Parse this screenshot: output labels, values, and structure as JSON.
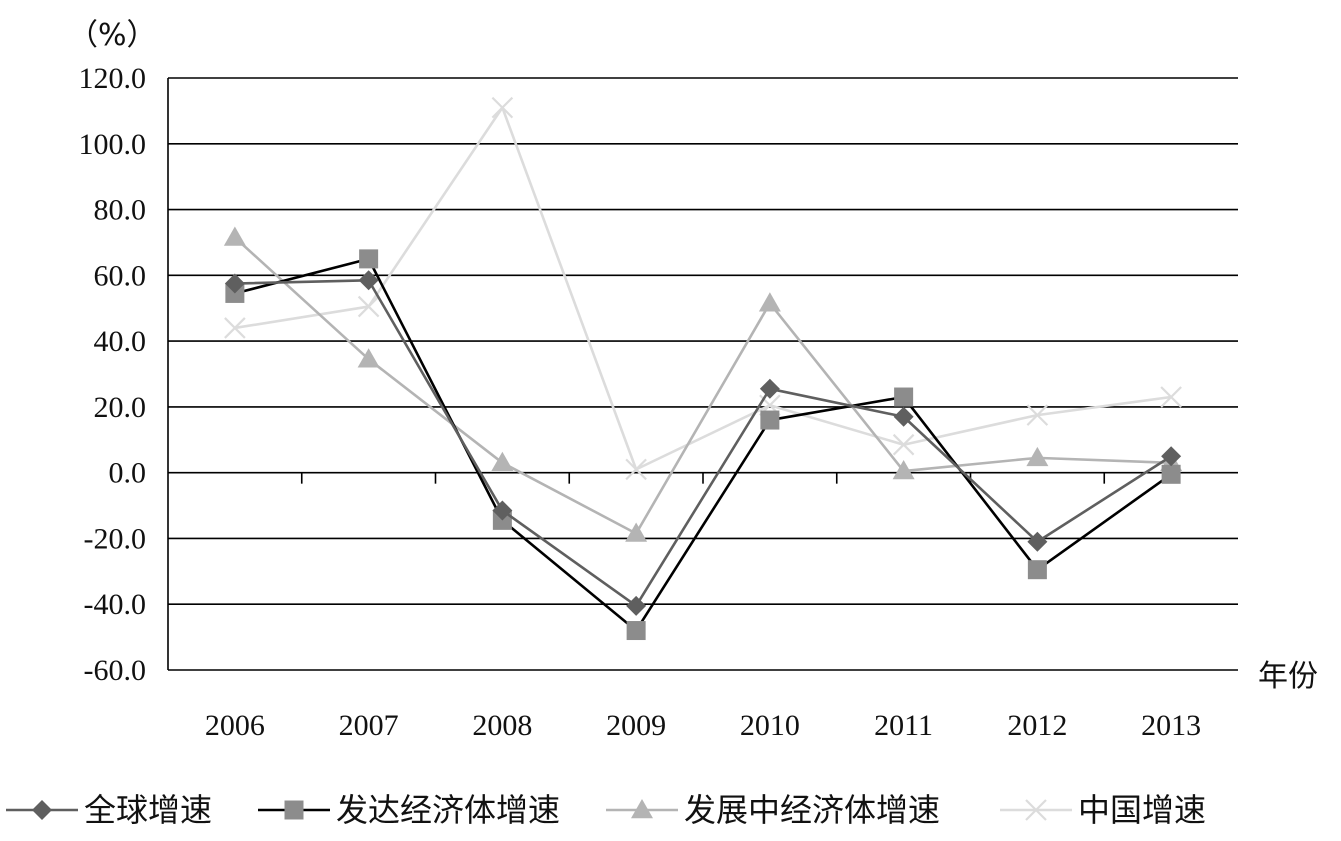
{
  "chart_data": {
    "type": "line",
    "title": "",
    "ylabel": "（%）",
    "xlabel": "年份",
    "ylim": [
      -60,
      120
    ],
    "ytick_step": 20,
    "ytick_labels": [
      "-60.0",
      "-40.0",
      "-20.0",
      "0.0",
      "20.0",
      "40.0",
      "60.0",
      "80.0",
      "100.0",
      "120.0"
    ],
    "grid": true,
    "legend_position": "bottom",
    "categories": [
      "2006",
      "2007",
      "2008",
      "2009",
      "2010",
      "2011",
      "2012",
      "2013"
    ],
    "series": [
      {
        "name": "全球增速",
        "marker": "diamond",
        "color": "#5f5f5f",
        "values": [
          57.5,
          58.5,
          -11.5,
          -40.5,
          25.5,
          17.0,
          -21.0,
          5.0
        ]
      },
      {
        "name": "发达经济体增速",
        "marker": "square",
        "color": "#000000",
        "marker_color": "#8c8c8c",
        "values": [
          54.5,
          65.0,
          -14.5,
          -48.0,
          16.0,
          23.0,
          -29.5,
          -0.5
        ]
      },
      {
        "name": "发展中经济体增速",
        "marker": "triangle",
        "color": "#b4b4b4",
        "values": [
          71.5,
          34.5,
          3.0,
          -18.5,
          51.5,
          0.5,
          4.5,
          3.0
        ]
      },
      {
        "name": "中国增速",
        "marker": "x",
        "color": "#dcdcdc",
        "values": [
          44.0,
          50.5,
          111.0,
          1.0,
          20.5,
          8.5,
          17.5,
          23.0
        ]
      }
    ]
  }
}
